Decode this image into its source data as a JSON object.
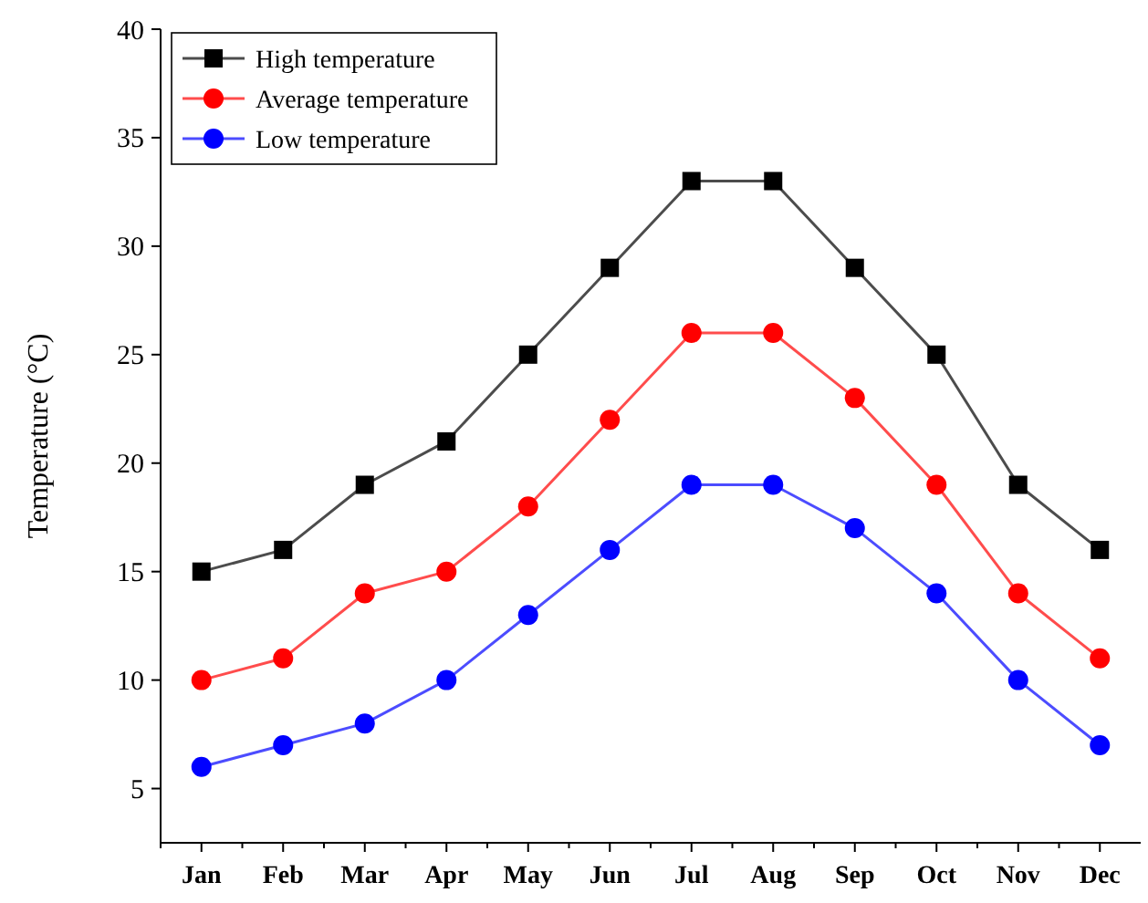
{
  "chart_data": {
    "type": "line",
    "ylabel": "Temperature (°C)",
    "categories": [
      "Jan",
      "Feb",
      "Mar",
      "Apr",
      "May",
      "Jun",
      "Jul",
      "Aug",
      "Sep",
      "Oct",
      "Nov",
      "Dec"
    ],
    "series": [
      {
        "name": "High temperature",
        "color": "#000000",
        "marker": "square",
        "values": [
          15,
          16,
          19,
          21,
          25,
          29,
          33,
          33,
          29,
          25,
          19,
          16
        ]
      },
      {
        "name": "Average temperature",
        "color": "#ff0000",
        "marker": "circle",
        "values": [
          10,
          11,
          14,
          15,
          18,
          22,
          26,
          26,
          23,
          19,
          14,
          11
        ]
      },
      {
        "name": "Low temperature",
        "color": "#0000ff",
        "marker": "circle",
        "values": [
          6,
          7,
          8,
          10,
          13,
          16,
          19,
          19,
          17,
          14,
          10,
          7
        ]
      }
    ],
    "ylim": [
      2.5,
      40
    ],
    "yticks": [
      5,
      10,
      15,
      20,
      25,
      30,
      35,
      40
    ],
    "grid": false,
    "legend": "top left"
  }
}
